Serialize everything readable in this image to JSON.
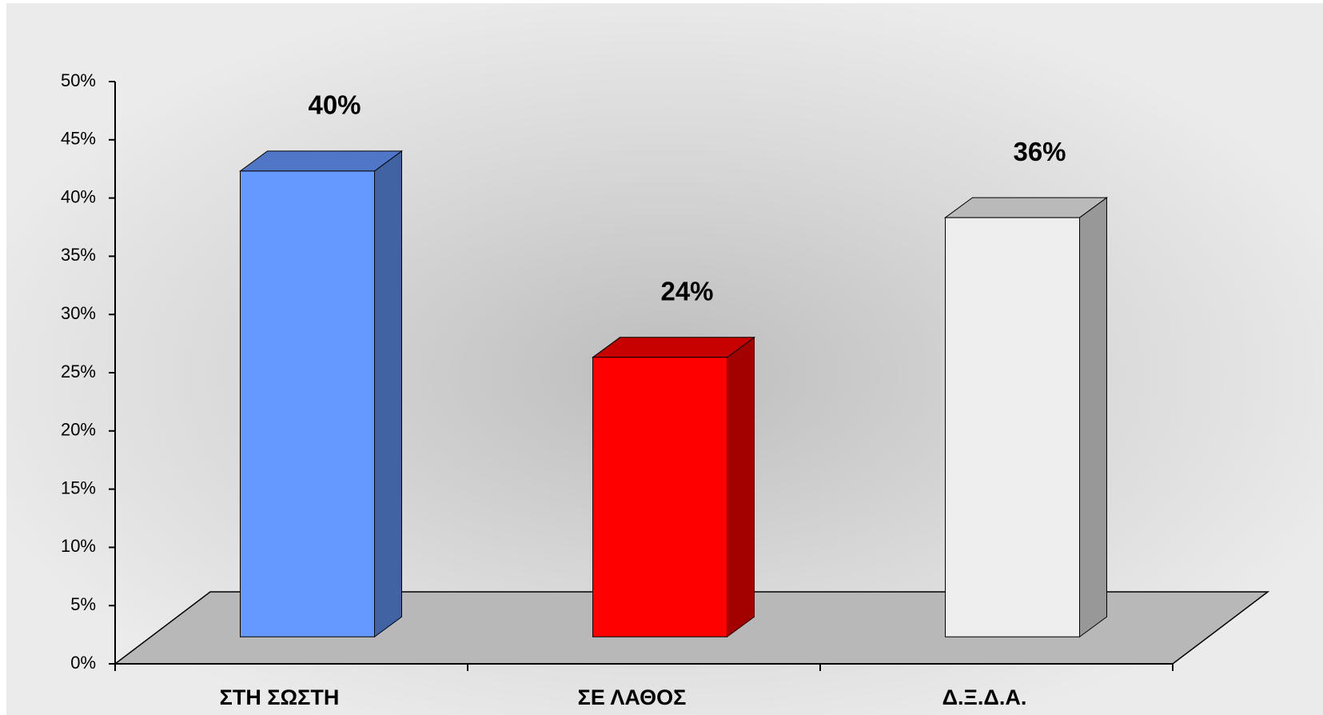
{
  "chart_data": {
    "type": "bar3d",
    "categories": [
      "ΣΤΗ ΣΩΣΤΗ",
      "ΣΕ ΛΑΘΟΣ",
      "Δ.Ξ.Δ.Α."
    ],
    "values": [
      40,
      24,
      36
    ],
    "value_labels": [
      "40%",
      "24%",
      "36%"
    ],
    "colors": [
      "#6699ff",
      "#ff0000",
      "#eeeeee"
    ],
    "ylim": [
      0,
      50
    ],
    "yticks": [
      {
        "value": 0,
        "label": "0%"
      },
      {
        "value": 5,
        "label": "5%"
      },
      {
        "value": 10,
        "label": "10%"
      },
      {
        "value": 15,
        "label": "15%"
      },
      {
        "value": 20,
        "label": "20%"
      },
      {
        "value": 25,
        "label": "25%"
      },
      {
        "value": 30,
        "label": "30%"
      },
      {
        "value": 35,
        "label": "35%"
      },
      {
        "value": 40,
        "label": "40%"
      },
      {
        "value": 45,
        "label": "45%"
      },
      {
        "value": 50,
        "label": "50%"
      }
    ]
  }
}
